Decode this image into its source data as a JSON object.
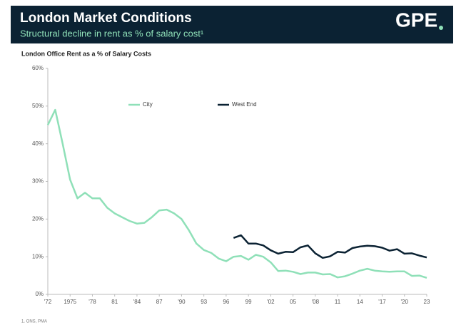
{
  "header": {
    "title": "London Market Conditions",
    "subtitle": "Structural decline in rent as % of salary cost¹",
    "logo": "GPE"
  },
  "footnote": "1. ONS, PMA",
  "chart_data": {
    "type": "line",
    "title": "London Office Rent as a % of Salary Costs",
    "x": [
      1972,
      1973,
      1974,
      1975,
      1976,
      1977,
      1978,
      1979,
      1980,
      1981,
      1982,
      1983,
      1984,
      1985,
      1986,
      1987,
      1988,
      1989,
      1990,
      1991,
      1992,
      1993,
      1994,
      1995,
      1996,
      1997,
      1998,
      1999,
      2000,
      2001,
      2002,
      2003,
      2004,
      2005,
      2006,
      2007,
      2008,
      2009,
      2010,
      2011,
      2012,
      2013,
      2014,
      2015,
      2016,
      2017,
      2018,
      2019,
      2020,
      2021,
      2022,
      2023
    ],
    "series": [
      {
        "name": "City",
        "color": "#8fe0b8",
        "values": [
          45,
          49,
          40,
          30.5,
          25.5,
          27,
          25.5,
          25.5,
          23,
          21.5,
          20.5,
          19.5,
          18.8,
          19,
          20.5,
          22.3,
          22.5,
          21.5,
          20,
          17,
          13.5,
          11.8,
          11,
          9.5,
          8.8,
          10,
          10.2,
          9.2,
          10.5,
          10,
          8.5,
          6.2,
          6.3,
          6,
          5.4,
          5.8,
          5.8,
          5.3,
          5.4,
          4.5,
          4.8,
          5.5,
          6.3,
          6.8,
          6.3,
          6.1,
          6,
          6.1,
          6.1,
          4.9,
          5,
          4.4
        ]
      },
      {
        "name": "West End",
        "color": "#0b2233",
        "values": [
          null,
          null,
          null,
          null,
          null,
          null,
          null,
          null,
          null,
          null,
          null,
          null,
          null,
          null,
          null,
          null,
          null,
          null,
          null,
          null,
          null,
          null,
          null,
          null,
          null,
          15,
          15.7,
          13.5,
          13.5,
          13,
          11.7,
          10.8,
          11.3,
          11.2,
          12.5,
          13,
          10.9,
          9.7,
          10.1,
          11.3,
          11.1,
          12.3,
          12.7,
          12.9,
          12.8,
          12.4,
          11.6,
          12,
          10.8,
          10.9,
          10.3,
          9.8
        ]
      }
    ],
    "xlim": [
      1972,
      2023
    ],
    "xticks": [
      {
        "value": 1972,
        "label": "'72"
      },
      1975,
      75,
      {
        "value": 1978,
        "label": "'78"
      },
      {
        "value": 1981,
        "label": "81"
      },
      {
        "value": 1984,
        "label": "'84"
      },
      {
        "value": 1987,
        "label": "87"
      },
      {
        "value": 1990,
        "label": "'90"
      },
      {
        "value": 1993,
        "label": "93"
      },
      {
        "value": 1996,
        "label": "96"
      },
      {
        "value": 1999,
        "label": "99"
      },
      {
        "value": 2002,
        "label": "'02"
      },
      {
        "value": 2005,
        "label": "05"
      },
      {
        "value": 2008,
        "label": "'08"
      },
      {
        "value": 2011,
        "label": "11"
      },
      {
        "value": 2014,
        "label": "14"
      },
      {
        "value": 2017,
        "label": "'17"
      },
      {
        "value": 2020,
        "label": "'20"
      },
      {
        "value": 2023,
        "label": "23"
      }
    ],
    "ylim": [
      0,
      60
    ],
    "yticks": [
      {
        "value": 0,
        "label": "0%"
      },
      {
        "value": 10,
        "label": "10%"
      },
      {
        "value": 20,
        "label": "20%"
      },
      {
        "value": 30,
        "label": "30%"
      },
      {
        "value": 40,
        "label": "40%"
      },
      {
        "value": 50,
        "label": "50%"
      },
      {
        "value": 60,
        "label": "60%"
      }
    ]
  }
}
